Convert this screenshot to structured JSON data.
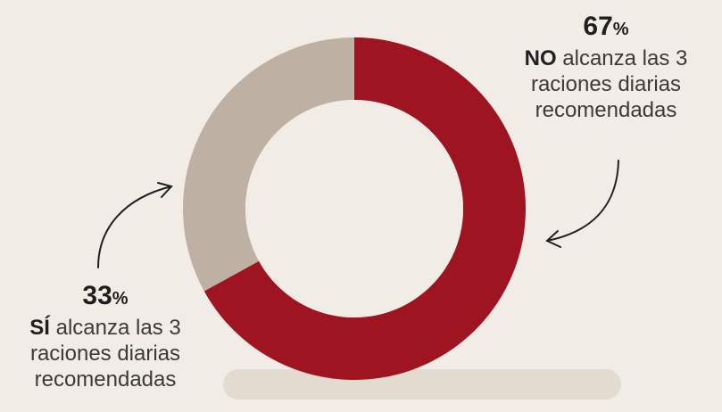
{
  "chart_data": {
    "type": "pie",
    "style": "donut",
    "colors": {
      "no": "#9e1420",
      "si": "#bfb0a4",
      "background": "#f1ede6",
      "shadow": "#e3dbd0"
    },
    "slices": [
      {
        "key": "no",
        "value": 67,
        "value_text": "67",
        "unit": "%",
        "bold_text": "NO",
        "line1_rest": " alcanza las 3",
        "line2": "raciones diarias",
        "line3": "recomendadas"
      },
      {
        "key": "si",
        "value": 33,
        "value_text": "33",
        "unit": "%",
        "bold_text": "SÍ",
        "line1_rest": " alcanza las 3",
        "line2": "raciones diarias",
        "line3": "recomendadas"
      }
    ]
  }
}
